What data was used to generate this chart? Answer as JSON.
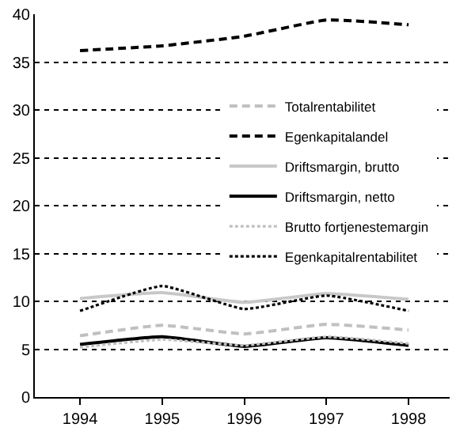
{
  "chart_data": {
    "type": "line",
    "categories": [
      "1994",
      "1995",
      "1996",
      "1997",
      "1998"
    ],
    "series": [
      {
        "name": "Totalrentabilitet",
        "color": "#c0c0c0",
        "line_style": "dashed",
        "values": [
          6.4,
          7.5,
          6.6,
          7.6,
          7.0
        ]
      },
      {
        "name": "Egenkapitalandel",
        "color": "#000000",
        "line_style": "dashed",
        "values": [
          36.2,
          36.7,
          37.7,
          39.4,
          38.9
        ]
      },
      {
        "name": "Driftsmargin, brutto",
        "color": "#c8c8c8",
        "line_style": "solid",
        "values": [
          10.3,
          10.9,
          9.9,
          10.8,
          10.2
        ]
      },
      {
        "name": "Driftsmargin, netto",
        "color": "#000000",
        "line_style": "solid",
        "values": [
          5.5,
          6.3,
          5.3,
          6.2,
          5.4
        ]
      },
      {
        "name": "Brutto fortjenestemargin",
        "color": "#c0c0c0",
        "line_style": "dotted",
        "values": [
          5.2,
          6.0,
          5.4,
          6.3,
          5.6
        ]
      },
      {
        "name": "Egenkapitalrentabilitet",
        "color": "#000000",
        "line_style": "dotted",
        "values": [
          9.0,
          11.6,
          9.2,
          10.6,
          9.0
        ]
      }
    ],
    "ylim": [
      0,
      40
    ],
    "yticks": [
      0,
      5,
      10,
      15,
      20,
      25,
      30,
      35,
      40
    ],
    "grid": "y",
    "legend": "right",
    "marker": "none"
  }
}
